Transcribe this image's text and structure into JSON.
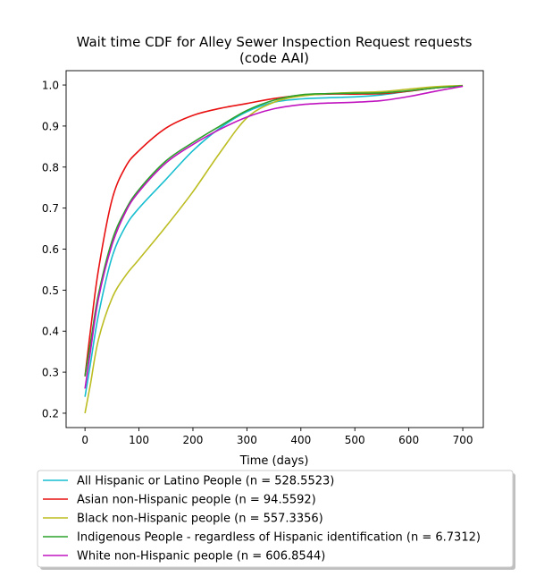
{
  "chart_data": {
    "type": "line",
    "title_line1": "Wait time CDF for Alley Sewer Inspection Request  requests",
    "title_line2": "(code AAI)",
    "xlabel": "Time (days)",
    "ylabel": "",
    "xlim": [
      -35,
      738
    ],
    "ylim": [
      0.165,
      1.035
    ],
    "xticks": [
      0,
      100,
      200,
      300,
      400,
      500,
      600,
      700
    ],
    "xtick_labels": [
      "0",
      "100",
      "200",
      "300",
      "400",
      "500",
      "600",
      "700"
    ],
    "yticks": [
      0.2,
      0.3,
      0.4,
      0.5,
      0.6,
      0.7,
      0.8,
      0.9,
      1.0
    ],
    "ytick_labels": [
      "0.2",
      "0.3",
      "0.4",
      "0.5",
      "0.6",
      "0.7",
      "0.8",
      "0.9",
      "1.0"
    ],
    "grid": false,
    "legend_position": "below-plot",
    "series": [
      {
        "name": "All Hispanic or Latino People (n = 528.5523)",
        "color": "#17becf",
        "x": [
          0,
          10,
          25,
          50,
          75,
          100,
          150,
          200,
          250,
          300,
          350,
          400,
          450,
          500,
          550,
          600,
          650,
          700
        ],
        "y": [
          0.24,
          0.32,
          0.44,
          0.58,
          0.655,
          0.7,
          0.77,
          0.84,
          0.895,
          0.935,
          0.958,
          0.966,
          0.969,
          0.971,
          0.976,
          0.985,
          0.993,
          0.998
        ]
      },
      {
        "name": "Asian non-Hispanic people (n = 94.5592)",
        "color": "#e81010",
        "x": [
          0,
          10,
          25,
          50,
          75,
          100,
          150,
          200,
          250,
          300,
          350,
          400,
          450,
          500,
          550,
          600,
          650,
          700
        ],
        "y": [
          0.29,
          0.4,
          0.55,
          0.72,
          0.8,
          0.84,
          0.895,
          0.926,
          0.943,
          0.955,
          0.967,
          0.975,
          0.978,
          0.978,
          0.979,
          0.985,
          0.993,
          0.998
        ]
      },
      {
        "name": "Black non-Hispanic people (n = 557.3356)",
        "color": "#bcbd22",
        "x": [
          0,
          10,
          25,
          50,
          75,
          100,
          150,
          200,
          250,
          300,
          350,
          400,
          450,
          500,
          550,
          600,
          650,
          700
        ],
        "y": [
          0.2,
          0.27,
          0.38,
          0.48,
          0.535,
          0.575,
          0.655,
          0.74,
          0.835,
          0.92,
          0.958,
          0.973,
          0.979,
          0.982,
          0.984,
          0.99,
          0.996,
          0.999
        ]
      },
      {
        "name": "Indigenous People - regardless of Hispanic identification (n = 6.7312)",
        "color": "#2ca02c",
        "x": [
          0,
          10,
          25,
          50,
          75,
          100,
          150,
          200,
          250,
          300,
          350,
          400,
          450,
          500,
          550,
          600,
          650,
          700
        ],
        "y": [
          0.29,
          0.37,
          0.49,
          0.62,
          0.695,
          0.745,
          0.815,
          0.86,
          0.9,
          0.938,
          0.963,
          0.976,
          0.979,
          0.98,
          0.981,
          0.986,
          0.993,
          0.998
        ]
      },
      {
        "name": "White non-Hispanic people (n = 606.8544)",
        "color": "#c014c0",
        "x": [
          0,
          10,
          25,
          50,
          75,
          100,
          150,
          200,
          250,
          300,
          350,
          400,
          450,
          500,
          550,
          600,
          650,
          700
        ],
        "y": [
          0.26,
          0.35,
          0.48,
          0.61,
          0.69,
          0.74,
          0.81,
          0.855,
          0.892,
          0.922,
          0.942,
          0.952,
          0.956,
          0.958,
          0.962,
          0.972,
          0.985,
          0.997
        ]
      }
    ]
  }
}
